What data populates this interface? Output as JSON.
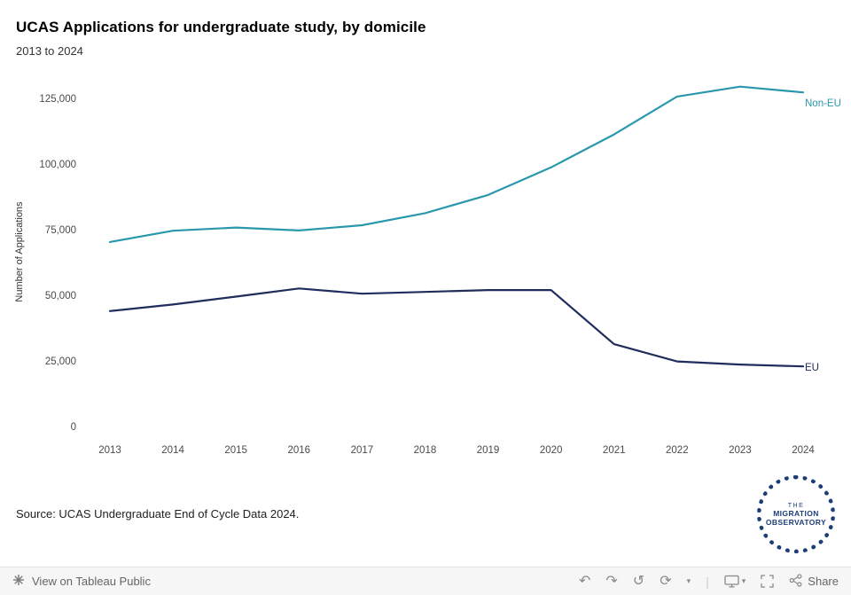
{
  "header": {
    "title": "UCAS Applications for undergraduate study, by domicile",
    "subtitle": "2013 to 2024"
  },
  "chart_data": {
    "type": "line",
    "x": [
      2013,
      2014,
      2015,
      2016,
      2017,
      2018,
      2019,
      2020,
      2021,
      2022,
      2023,
      2024
    ],
    "series": [
      {
        "name": "Non-EU",
        "color": "#2a98ac",
        "values": [
          70300,
          74600,
          75800,
          74700,
          76700,
          81300,
          88200,
          98700,
          111300,
          125700,
          129500,
          127300
        ]
      },
      {
        "name": "EU",
        "color": "#202d5c",
        "values": [
          44000,
          46500,
          49500,
          52600,
          50600,
          51300,
          52000,
          52000,
          31400,
          24800,
          23600,
          22900
        ]
      }
    ],
    "title": "UCAS Applications for undergraduate study, by domicile",
    "subtitle": "2013 to 2024",
    "xlabel": "",
    "ylabel": "Number of Applications",
    "ylim": [
      0,
      137000
    ],
    "yticks": [
      0,
      25000,
      50000,
      75000,
      100000,
      125000
    ],
    "grid": false,
    "legend_position": "line-end-labels"
  },
  "source_text": "Source: UCAS Undergraduate End of Cycle Data 2024.",
  "logo": {
    "line1": "THE",
    "line2": "MIGRATION",
    "line3": "OBSERVATORY"
  },
  "toolbar": {
    "brand_label": "View on Tableau Public",
    "share_label": "Share",
    "glyphs": {
      "undo": "↶",
      "redo": "↷",
      "revert": "↺",
      "refresh": "⟳",
      "caret": "▾",
      "separator": "|"
    }
  }
}
